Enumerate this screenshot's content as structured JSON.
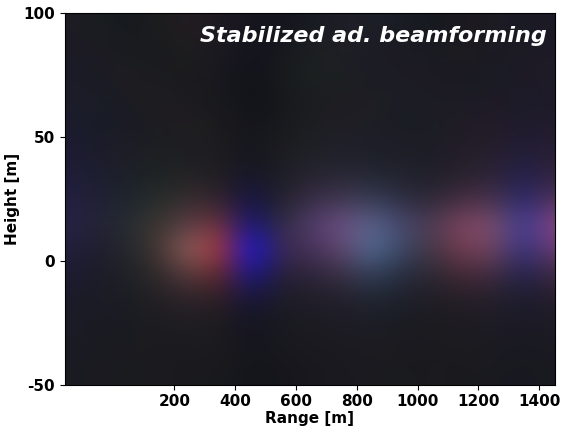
{
  "chart_data": {
    "type": "heatmap",
    "title": "Stabilized ad. beamforming",
    "x_label": "Range [m]",
    "y_label": "Height [m]",
    "x": [
      -150,
      -50,
      50,
      150,
      250,
      350,
      450,
      550,
      650,
      750,
      850,
      950,
      1050,
      1150,
      1250,
      1350,
      1450
    ],
    "y": [
      95,
      85,
      75,
      65,
      55,
      45,
      35,
      25,
      15,
      5,
      -5,
      -15,
      -25,
      -35,
      -45
    ],
    "cells_red": [
      [
        30,
        25,
        22,
        28,
        35,
        30,
        22,
        20,
        25,
        30,
        28,
        25,
        22,
        28,
        30,
        25,
        28
      ],
      [
        28,
        30,
        25,
        25,
        30,
        28,
        20,
        22,
        28,
        32,
        30,
        28,
        25,
        30,
        28,
        28,
        30
      ],
      [
        25,
        28,
        30,
        28,
        26,
        25,
        18,
        24,
        30,
        28,
        25,
        30,
        28,
        26,
        25,
        30,
        32
      ],
      [
        30,
        26,
        28,
        32,
        28,
        24,
        18,
        22,
        26,
        30,
        32,
        28,
        30,
        28,
        30,
        28,
        30
      ],
      [
        28,
        24,
        25,
        30,
        32,
        28,
        20,
        25,
        28,
        34,
        30,
        26,
        28,
        32,
        35,
        30,
        34
      ],
      [
        26,
        28,
        30,
        28,
        30,
        30,
        22,
        28,
        32,
        30,
        28,
        30,
        30,
        35,
        38,
        32,
        40
      ],
      [
        30,
        30,
        28,
        30,
        35,
        32,
        22,
        30,
        38,
        40,
        35,
        32,
        32,
        40,
        45,
        35,
        50
      ],
      [
        35,
        32,
        30,
        40,
        55,
        50,
        20,
        35,
        55,
        65,
        55,
        45,
        45,
        70,
        70,
        40,
        80
      ],
      [
        40,
        35,
        40,
        60,
        90,
        110,
        20,
        50,
        80,
        110,
        90,
        70,
        80,
        130,
        120,
        60,
        140
      ],
      [
        35,
        30,
        35,
        70,
        150,
        170,
        20,
        60,
        70,
        100,
        80,
        60,
        70,
        120,
        110,
        50,
        110
      ],
      [
        30,
        28,
        30,
        50,
        90,
        100,
        22,
        40,
        45,
        60,
        50,
        40,
        45,
        70,
        65,
        35,
        65
      ],
      [
        28,
        26,
        28,
        35,
        45,
        45,
        22,
        30,
        32,
        35,
        32,
        30,
        32,
        38,
        36,
        28,
        38
      ],
      [
        26,
        28,
        25,
        30,
        30,
        30,
        20,
        26,
        28,
        30,
        28,
        26,
        28,
        30,
        30,
        26,
        30
      ],
      [
        28,
        25,
        28,
        26,
        28,
        28,
        22,
        24,
        26,
        28,
        30,
        28,
        26,
        28,
        28,
        25,
        28
      ],
      [
        25,
        28,
        26,
        28,
        26,
        25,
        20,
        22,
        25,
        26,
        28,
        25,
        28,
        26,
        25,
        24,
        26
      ]
    ],
    "cells_green": [
      [
        28,
        30,
        25,
        30,
        28,
        25,
        22,
        20,
        28,
        30,
        32,
        28,
        25,
        25,
        28,
        26,
        25
      ],
      [
        26,
        28,
        28,
        26,
        30,
        26,
        20,
        24,
        32,
        30,
        28,
        26,
        28,
        28,
        26,
        28,
        26
      ],
      [
        28,
        26,
        30,
        28,
        28,
        24,
        18,
        26,
        34,
        32,
        30,
        28,
        26,
        26,
        28,
        26,
        28
      ],
      [
        30,
        28,
        28,
        30,
        26,
        26,
        18,
        24,
        30,
        28,
        30,
        30,
        28,
        28,
        26,
        28,
        26
      ],
      [
        26,
        30,
        26,
        28,
        30,
        28,
        20,
        26,
        30,
        30,
        32,
        28,
        30,
        28,
        28,
        26,
        28
      ],
      [
        28,
        28,
        30,
        32,
        30,
        28,
        22,
        28,
        34,
        32,
        30,
        30,
        28,
        30,
        30,
        30,
        30
      ],
      [
        30,
        30,
        32,
        35,
        34,
        30,
        22,
        30,
        36,
        38,
        40,
        34,
        32,
        34,
        35,
        32,
        36
      ],
      [
        32,
        32,
        38,
        45,
        45,
        35,
        20,
        34,
        45,
        55,
        60,
        45,
        40,
        45,
        50,
        40,
        50
      ],
      [
        35,
        35,
        45,
        55,
        60,
        50,
        20,
        45,
        60,
        80,
        100,
        70,
        60,
        70,
        80,
        60,
        70
      ],
      [
        30,
        30,
        40,
        55,
        100,
        50,
        20,
        40,
        50,
        70,
        110,
        70,
        55,
        60,
        70,
        50,
        60
      ],
      [
        28,
        28,
        35,
        42,
        60,
        38,
        22,
        32,
        38,
        48,
        65,
        45,
        40,
        42,
        45,
        35,
        42
      ],
      [
        26,
        28,
        30,
        32,
        36,
        30,
        22,
        28,
        30,
        32,
        38,
        32,
        30,
        30,
        32,
        28,
        30
      ],
      [
        28,
        26,
        28,
        28,
        30,
        28,
        20,
        26,
        28,
        28,
        30,
        28,
        28,
        28,
        28,
        26,
        28
      ],
      [
        26,
        28,
        26,
        28,
        28,
        26,
        22,
        24,
        26,
        26,
        28,
        26,
        26,
        28,
        26,
        26,
        26
      ],
      [
        28,
        26,
        28,
        26,
        26,
        26,
        20,
        22,
        24,
        26,
        26,
        28,
        26,
        26,
        26,
        24,
        26
      ]
    ],
    "cells_blue": [
      [
        35,
        32,
        30,
        30,
        32,
        35,
        30,
        28,
        35,
        38,
        40,
        35,
        32,
        30,
        35,
        38,
        35
      ],
      [
        38,
        35,
        32,
        30,
        30,
        34,
        28,
        30,
        34,
        36,
        38,
        36,
        34,
        32,
        34,
        36,
        38
      ],
      [
        40,
        36,
        34,
        32,
        30,
        32,
        26,
        30,
        32,
        35,
        36,
        38,
        36,
        34,
        36,
        38,
        40
      ],
      [
        42,
        38,
        34,
        32,
        32,
        30,
        26,
        28,
        32,
        34,
        36,
        36,
        38,
        36,
        38,
        40,
        42
      ],
      [
        45,
        40,
        36,
        34,
        32,
        30,
        28,
        30,
        34,
        38,
        38,
        36,
        36,
        38,
        40,
        45,
        44
      ],
      [
        50,
        42,
        38,
        34,
        34,
        32,
        30,
        32,
        38,
        42,
        40,
        38,
        38,
        40,
        45,
        55,
        50
      ],
      [
        58,
        48,
        40,
        36,
        36,
        34,
        40,
        36,
        48,
        52,
        50,
        44,
        42,
        46,
        55,
        75,
        60
      ],
      [
        65,
        52,
        45,
        42,
        48,
        45,
        70,
        42,
        70,
        80,
        85,
        65,
        55,
        65,
        75,
        110,
        85
      ],
      [
        70,
        55,
        50,
        50,
        70,
        60,
        120,
        60,
        110,
        130,
        140,
        110,
        80,
        100,
        110,
        150,
        130
      ],
      [
        60,
        45,
        45,
        50,
        100,
        50,
        230,
        80,
        90,
        110,
        150,
        100,
        70,
        80,
        100,
        130,
        110
      ],
      [
        50,
        40,
        40,
        42,
        65,
        42,
        140,
        55,
        60,
        70,
        90,
        65,
        50,
        55,
        65,
        80,
        65
      ],
      [
        42,
        36,
        36,
        36,
        42,
        36,
        60,
        38,
        40,
        44,
        50,
        42,
        38,
        40,
        42,
        48,
        42
      ],
      [
        38,
        34,
        34,
        32,
        34,
        32,
        34,
        32,
        34,
        36,
        38,
        34,
        32,
        34,
        36,
        38,
        36
      ],
      [
        36,
        34,
        32,
        32,
        32,
        30,
        30,
        30,
        32,
        34,
        34,
        32,
        32,
        32,
        34,
        34,
        34
      ],
      [
        34,
        32,
        32,
        30,
        30,
        30,
        28,
        28,
        30,
        32,
        32,
        30,
        30,
        30,
        32,
        32,
        32
      ]
    ],
    "xlim": [
      -160,
      1450
    ],
    "ylim": [
      -50,
      100
    ],
    "xticks": [
      200,
      400,
      600,
      800,
      1000,
      1200,
      1400
    ],
    "yticks": [
      -50,
      0,
      50,
      100
    ]
  }
}
